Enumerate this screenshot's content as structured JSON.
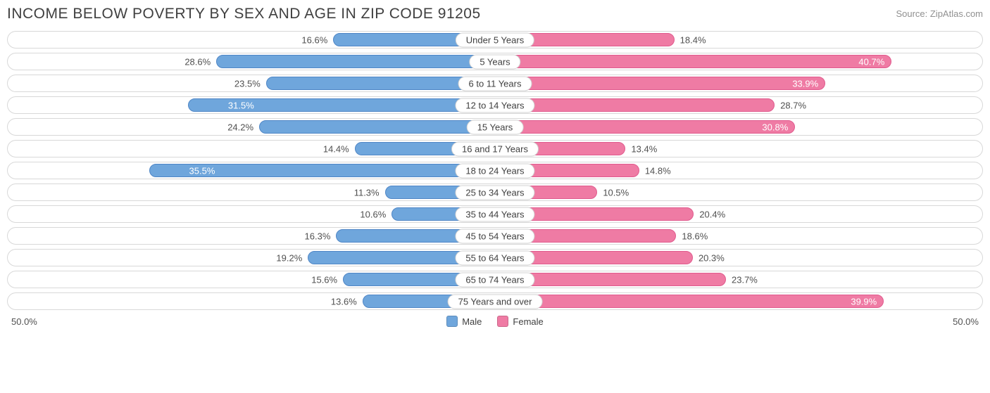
{
  "header": {
    "title": "INCOME BELOW POVERTY BY SEX AND AGE IN ZIP CODE 91205",
    "source": "Source: ZipAtlas.com"
  },
  "chart": {
    "type": "diverging-bar",
    "axis_max": 50.0,
    "axis_left_label": "50.0%",
    "axis_right_label": "50.0%",
    "colors": {
      "male_fill": "#6fa6dc",
      "male_border": "#4f86c6",
      "female_fill": "#ef7ba4",
      "female_border": "#e05a8d",
      "row_border": "#d8d8d8",
      "background": "#ffffff",
      "text": "#404040"
    },
    "legend": {
      "male": "Male",
      "female": "Female"
    },
    "inside_label_threshold": 30.0,
    "categories": [
      {
        "label": "Under 5 Years",
        "male": 16.6,
        "female": 18.4
      },
      {
        "label": "5 Years",
        "male": 28.6,
        "female": 40.7
      },
      {
        "label": "6 to 11 Years",
        "male": 23.5,
        "female": 33.9
      },
      {
        "label": "12 to 14 Years",
        "male": 31.5,
        "female": 28.7
      },
      {
        "label": "15 Years",
        "male": 24.2,
        "female": 30.8
      },
      {
        "label": "16 and 17 Years",
        "male": 14.4,
        "female": 13.4
      },
      {
        "label": "18 to 24 Years",
        "male": 35.5,
        "female": 14.8
      },
      {
        "label": "25 to 34 Years",
        "male": 11.3,
        "female": 10.5
      },
      {
        "label": "35 to 44 Years",
        "male": 10.6,
        "female": 20.4
      },
      {
        "label": "45 to 54 Years",
        "male": 16.3,
        "female": 18.6
      },
      {
        "label": "55 to 64 Years",
        "male": 19.2,
        "female": 20.3
      },
      {
        "label": "65 to 74 Years",
        "male": 15.6,
        "female": 23.7
      },
      {
        "label": "75 Years and over",
        "male": 13.6,
        "female": 39.9
      }
    ]
  }
}
